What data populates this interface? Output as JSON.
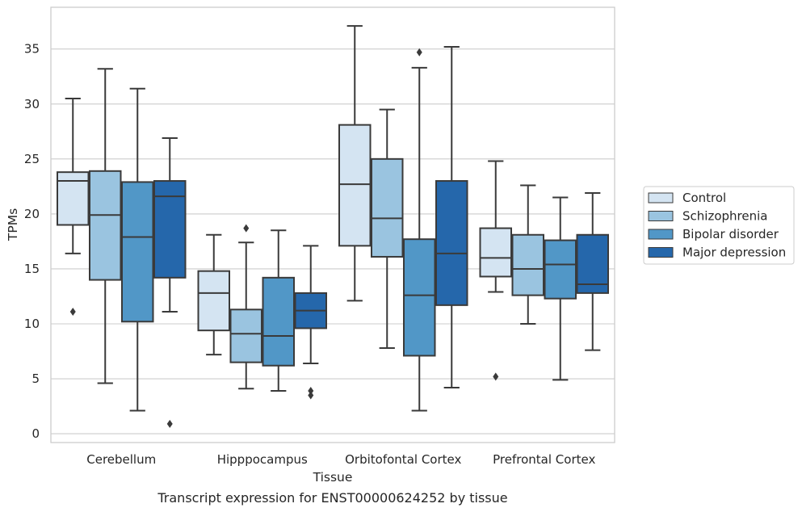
{
  "caption": "Transcript expression for ENST00000624252 by tissue",
  "chart_data": {
    "type": "boxplot",
    "xlabel": "Tissue",
    "ylabel": "TPMs",
    "ylim": [
      -0.8,
      38.8
    ],
    "yticks": [
      0,
      5,
      10,
      15,
      20,
      25,
      30,
      35
    ],
    "grid": "horizontal",
    "legend_position": "right",
    "categories": [
      "Cerebellum",
      "Hipppocampus",
      "Orbitofontal Cortex",
      "Prefrontal Cortex"
    ],
    "series": [
      {
        "name": "Control",
        "color": "#d4e4f2",
        "boxes": [
          {
            "min": 16.4,
            "q1": 19.0,
            "median": 23.0,
            "q3": 23.8,
            "max": 30.5,
            "outliers": [
              11.1
            ]
          },
          {
            "min": 7.2,
            "q1": 9.4,
            "median": 12.8,
            "q3": 14.8,
            "max": 18.1,
            "outliers": []
          },
          {
            "min": 12.1,
            "q1": 17.1,
            "median": 22.7,
            "q3": 28.1,
            "max": 37.1,
            "outliers": []
          },
          {
            "min": 12.9,
            "q1": 14.3,
            "median": 16.0,
            "q3": 18.7,
            "max": 24.8,
            "outliers": [
              5.2
            ]
          }
        ]
      },
      {
        "name": "Schizophrenia",
        "color": "#9ac4e0",
        "boxes": [
          {
            "min": 4.6,
            "q1": 14.0,
            "median": 19.9,
            "q3": 23.9,
            "max": 33.2,
            "outliers": []
          },
          {
            "min": 4.1,
            "q1": 6.5,
            "median": 9.1,
            "q3": 11.3,
            "max": 17.4,
            "outliers": [
              18.7
            ]
          },
          {
            "min": 7.8,
            "q1": 16.1,
            "median": 19.6,
            "q3": 25.0,
            "max": 29.5,
            "outliers": []
          },
          {
            "min": 10.0,
            "q1": 12.6,
            "median": 15.0,
            "q3": 18.1,
            "max": 22.6,
            "outliers": []
          }
        ]
      },
      {
        "name": "Bipolar disorder",
        "color": "#5197c7",
        "boxes": [
          {
            "min": 2.1,
            "q1": 10.2,
            "median": 17.9,
            "q3": 22.9,
            "max": 31.4,
            "outliers": []
          },
          {
            "min": 3.9,
            "q1": 6.2,
            "median": 8.9,
            "q3": 14.2,
            "max": 18.5,
            "outliers": []
          },
          {
            "min": 2.1,
            "q1": 7.1,
            "median": 12.6,
            "q3": 17.7,
            "max": 33.3,
            "outliers": [
              34.7
            ]
          },
          {
            "min": 4.9,
            "q1": 12.3,
            "median": 15.4,
            "q3": 17.6,
            "max": 21.5,
            "outliers": []
          }
        ]
      },
      {
        "name": "Major depression",
        "color": "#2567ab",
        "boxes": [
          {
            "min": 11.1,
            "q1": 14.2,
            "median": 21.6,
            "q3": 23.0,
            "max": 26.9,
            "outliers": [
              0.9
            ]
          },
          {
            "min": 6.4,
            "q1": 9.6,
            "median": 11.2,
            "q3": 12.8,
            "max": 17.1,
            "outliers": [
              3.9,
              3.5
            ]
          },
          {
            "min": 4.2,
            "q1": 11.7,
            "median": 16.4,
            "q3": 23.0,
            "max": 35.2,
            "outliers": []
          },
          {
            "min": 7.6,
            "q1": 12.8,
            "median": 13.6,
            "q3": 18.1,
            "max": 21.9,
            "outliers": []
          }
        ]
      }
    ]
  }
}
